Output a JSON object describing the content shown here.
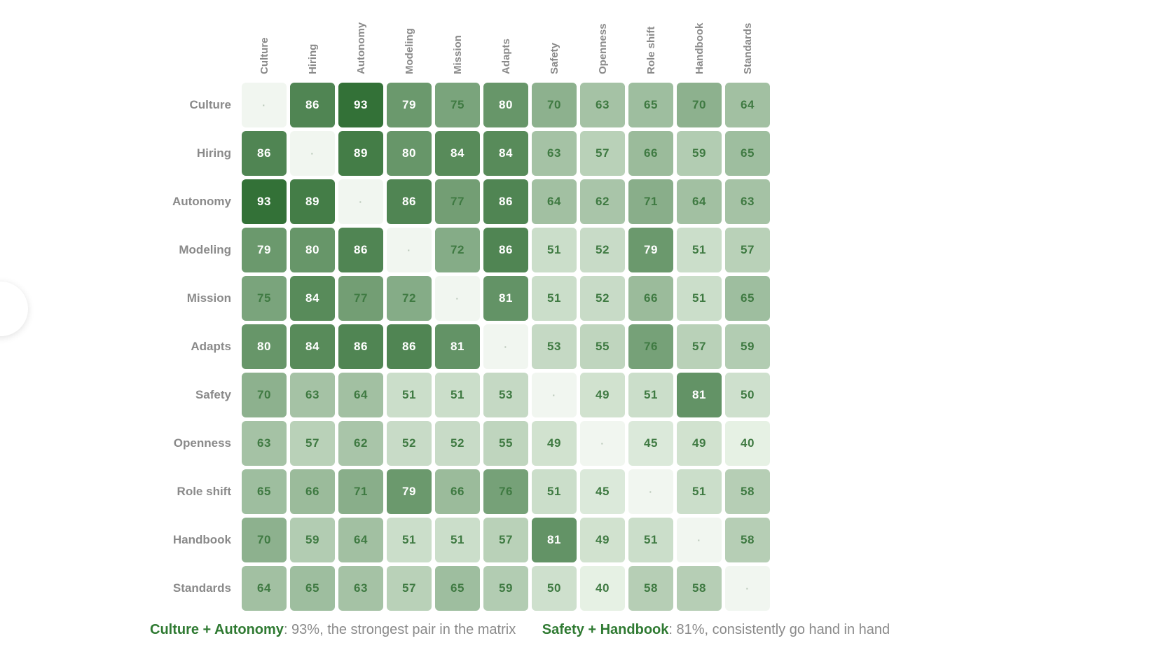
{
  "chart_data": {
    "type": "heatmap",
    "categories": [
      "Culture",
      "Hiring",
      "Autonomy",
      "Modeling",
      "Mission",
      "Adapts",
      "Safety",
      "Openness",
      "Role shift",
      "Handbook",
      "Standards"
    ],
    "diagonal_marker": "·",
    "values": [
      [
        null,
        86,
        93,
        79,
        75,
        80,
        70,
        63,
        65,
        70,
        64
      ],
      [
        86,
        null,
        89,
        80,
        84,
        84,
        63,
        57,
        66,
        59,
        65
      ],
      [
        93,
        89,
        null,
        86,
        77,
        86,
        64,
        62,
        71,
        64,
        63
      ],
      [
        79,
        80,
        86,
        null,
        72,
        86,
        51,
        52,
        79,
        51,
        57
      ],
      [
        75,
        84,
        77,
        72,
        null,
        81,
        51,
        52,
        66,
        51,
        65
      ],
      [
        80,
        84,
        86,
        86,
        81,
        null,
        53,
        55,
        76,
        57,
        59
      ],
      [
        70,
        63,
        64,
        51,
        51,
        53,
        null,
        49,
        51,
        81,
        50
      ],
      [
        63,
        57,
        62,
        52,
        52,
        55,
        49,
        null,
        45,
        49,
        40
      ],
      [
        65,
        66,
        71,
        79,
        66,
        76,
        51,
        45,
        null,
        51,
        58
      ],
      [
        70,
        59,
        64,
        51,
        51,
        57,
        81,
        49,
        51,
        null,
        58
      ],
      [
        64,
        65,
        63,
        57,
        65,
        59,
        50,
        40,
        58,
        58,
        null
      ]
    ],
    "color_scale": {
      "low": "#e9f3e7",
      "high": "#2f6e33",
      "dark_text": "#3f7a42",
      "light_text": "#ffffff"
    },
    "legend": "none",
    "grid": false
  },
  "notes": [
    {
      "key": "Culture + Autonomy",
      "text": ": 93%, the strongest pair in the matrix"
    },
    {
      "key": "Safety + Handbook",
      "text": ": 81%, consistently go hand in hand"
    }
  ],
  "side_handle": {
    "icon": "chevron-left-icon",
    "glyph": "‹"
  }
}
